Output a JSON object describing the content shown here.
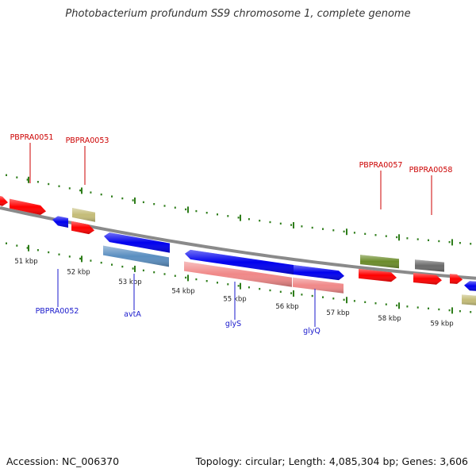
{
  "title": "Photobacterium profundum SS9 chromosome 1, complete genome",
  "footer": {
    "accession": "Accession: NC_006370",
    "stats": "Topology: circular; Length: 4,085,304 bp; Genes: 3,606"
  },
  "colors": {
    "backbone": "#8a8a8a",
    "tick": "#2e7d1a",
    "label_top": "#cc0000",
    "label_bottom": "#1a1acc",
    "red": "#ff0000",
    "blue": "#0000ee",
    "tan": "#c4bc78",
    "olive": "#6b8c2a",
    "gray": "#6a6a6a",
    "steel": "#5a8ec0",
    "pink": "#f08888"
  },
  "kbp_ticks": [
    "51 kbp",
    "52 kbp",
    "53 kbp",
    "54 kbp",
    "55 kbp",
    "56 kbp",
    "57 kbp",
    "58 kbp",
    "59 kbp"
  ],
  "gene_labels": {
    "top": [
      "PBPRA0051",
      "PBPRA0053",
      "PBPRA0057",
      "PBPRA0058"
    ],
    "bottom": [
      "PBPRA0052",
      "avtA",
      "glyS",
      "glyQ"
    ]
  }
}
